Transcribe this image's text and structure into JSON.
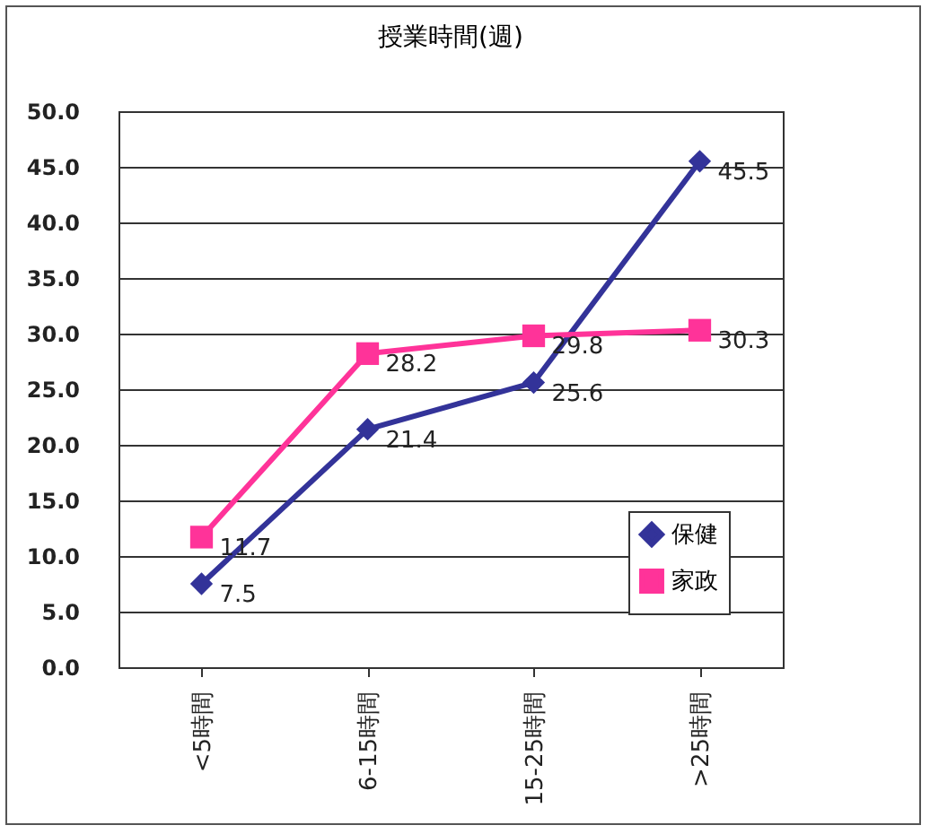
{
  "chart_data": {
    "type": "line",
    "title": "授業時間(週)",
    "categories": [
      "<5時間",
      "6-15時間",
      "15-25時間",
      ">25時間"
    ],
    "series": [
      {
        "name": "保健",
        "color": "#333399",
        "values": [
          7.5,
          21.4,
          25.6,
          45.5
        ],
        "marker": "diamond"
      },
      {
        "name": "家政",
        "color": "#ff3399",
        "values": [
          11.7,
          28.2,
          29.8,
          30.3
        ],
        "marker": "square"
      }
    ],
    "ylim": [
      0,
      50
    ],
    "yticks": [
      {
        "value": 0,
        "label": "0.0"
      },
      {
        "value": 5,
        "label": "5.0"
      },
      {
        "value": 10,
        "label": "10.0"
      },
      {
        "value": 15,
        "label": "15.0"
      },
      {
        "value": 20,
        "label": "20.0"
      },
      {
        "value": 25,
        "label": "25.0"
      },
      {
        "value": 30,
        "label": "30.0"
      },
      {
        "value": 35,
        "label": "35.0"
      },
      {
        "value": 40,
        "label": "40.0"
      },
      {
        "value": 45,
        "label": "45.0"
      },
      {
        "value": 50,
        "label": "50.0"
      }
    ],
    "grid": "y",
    "legend": "bottom right",
    "data_labels": true,
    "line_style": "solid"
  }
}
